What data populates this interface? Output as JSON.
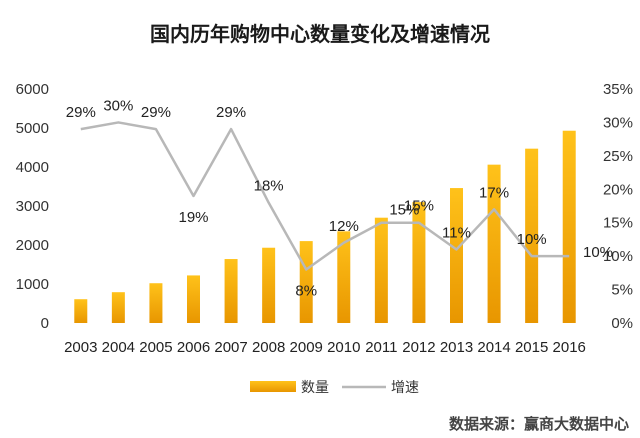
{
  "colors": {
    "bar_top": "#ffc21a",
    "bar_bottom": "#e89600",
    "line": "#b8b8b8",
    "text": "#333333",
    "background": "#ffffff"
  },
  "chart_data": {
    "type": "bar",
    "title": "国内历年购物中心数量变化及增速情况",
    "categories": [
      "2003",
      "2004",
      "2005",
      "2006",
      "2007",
      "2008",
      "2009",
      "2010",
      "2011",
      "2012",
      "2013",
      "2014",
      "2015",
      "2016"
    ],
    "series": [
      {
        "name": "数量",
        "type": "bar",
        "axis": "left",
        "values": [
          610,
          790,
          1020,
          1220,
          1640,
          1930,
          2100,
          2350,
          2700,
          3100,
          3460,
          4060,
          4470,
          4930
        ]
      },
      {
        "name": "增速",
        "type": "line",
        "axis": "right",
        "values": [
          29,
          30,
          29,
          19,
          29,
          18,
          8,
          12,
          15,
          15,
          11,
          17,
          10,
          10
        ],
        "labels": [
          "29%",
          "30%",
          "29%",
          "19%",
          "29%",
          "18%",
          "8%",
          "12%",
          "15%",
          "15%",
          "11%",
          "17%",
          "10%",
          "10%"
        ]
      }
    ],
    "y_left": {
      "min": 0,
      "max": 6000,
      "ticks": [
        "0",
        "1000",
        "2000",
        "3000",
        "4000",
        "5000",
        "6000"
      ]
    },
    "y_right": {
      "min": 0,
      "max": 35,
      "ticks": [
        "0%",
        "5%",
        "10%",
        "15%",
        "20%",
        "25%",
        "30%",
        "35%"
      ]
    },
    "grid": false,
    "legend_position": "bottom"
  },
  "source_text": "数据来源：赢商大数据中心"
}
